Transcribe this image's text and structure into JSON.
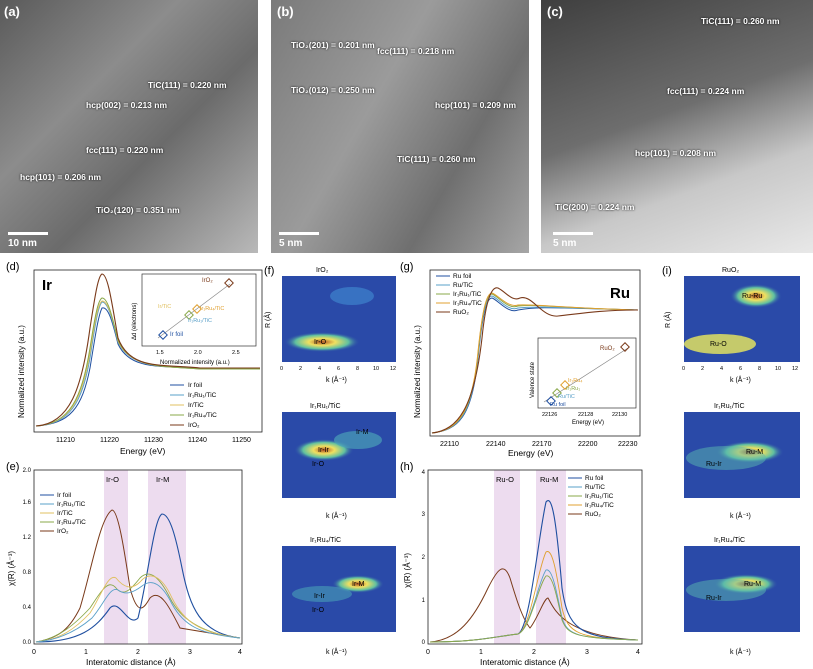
{
  "panel_a": {
    "label": "(a)",
    "scale": "10 nm",
    "annotations": [
      "TiC(111) = 0.220 nm",
      "hcp(002) = 0.213 nm",
      "fcc(111) = 0.220 nm",
      "hcp(101) = 0.206 nm",
      "TiO₂(120) = 0.351 nm"
    ]
  },
  "panel_b": {
    "label": "(b)",
    "scale": "5 nm",
    "annotations": [
      "TiO₂(201) = 0.201 nm",
      "fcc(111) = 0.218 nm",
      "TiO₂(012) = 0.250 nm",
      "hcp(101) = 0.209 nm",
      "TiC(111) = 0.260 nm"
    ]
  },
  "panel_c": {
    "label": "(c)",
    "scale": "5 nm",
    "annotations": [
      "TiC(111) = 0.260 nm",
      "fcc(111) = 0.224 nm",
      "hcp(101) = 0.208 nm",
      "TiC(200) = 0.224 nm"
    ]
  },
  "panel_d": {
    "label": "(d)",
    "element": "Ir",
    "xlabel": "Energy (eV)",
    "ylabel": "Normalized intensity (a.u.)",
    "xticks": [
      "11210",
      "11220",
      "11230",
      "11240",
      "11250"
    ],
    "legend": [
      "Ir foil",
      "Ir₁Ru₁/TiC",
      "Ir/TiC",
      "Ir₁Ru₄/TiC",
      "IrO₂"
    ],
    "colors": [
      "#1f4fa0",
      "#5aa0c8",
      "#e0c060",
      "#8aa84a",
      "#7a3a1a"
    ],
    "inset": {
      "xlabel": "Normalized intensity (a.u.)",
      "ylabel": "Δd (electrons)",
      "xticks": [
        "1.5",
        "2.0",
        "2.5"
      ],
      "yticks": [
        "2",
        "3",
        "4",
        "5"
      ],
      "labels": [
        "IrO₂",
        "Ir/TiC",
        "Ir₁Ru₄/TiC",
        "Ir₁Ru₁/TiC",
        "Ir foil"
      ]
    }
  },
  "panel_e": {
    "label": "(e)",
    "xlabel": "Interatomic distance (Å)",
    "ylabel": "χ(R) (Å⁻³)",
    "xticks": [
      "0",
      "1",
      "2",
      "3",
      "4"
    ],
    "yticks": [
      "0.0",
      "0.2",
      "0.4",
      "0.6",
      "0.8",
      "1.0",
      "1.2",
      "1.4",
      "1.6",
      "1.8",
      "2.0"
    ],
    "bands": [
      "Ir-O",
      "Ir-M"
    ],
    "legend": [
      "Ir foil",
      "Ir₁Ru₁/TiC",
      "Ir/TiC",
      "Ir₁Ru₄/TiC",
      "IrO₂"
    ]
  },
  "panel_f": {
    "label": "(f)",
    "maps": [
      {
        "title": "IrO₂",
        "labels": [
          "Ir-O"
        ]
      },
      {
        "title": "Ir₁Ru₁/TiC",
        "labels": [
          "Ir-M",
          "Ir-Ir",
          "Ir-O"
        ]
      },
      {
        "title": "Ir₁Ru₄/TiC",
        "labels": [
          "Ir-M",
          "Ir-Ir",
          "Ir-O"
        ]
      }
    ],
    "xlabel": "k (Å⁻¹)",
    "ylabel": "R (Å)",
    "xticks": [
      "0",
      "2",
      "4",
      "6",
      "8",
      "10",
      "12"
    ]
  },
  "panel_g": {
    "label": "(g)",
    "element": "Ru",
    "xlabel": "Energy (eV)",
    "ylabel": "Normalized intensity (a.u.)",
    "xticks": [
      "22110",
      "22140",
      "22170",
      "22200",
      "22230"
    ],
    "legend": [
      "Ru foil",
      "Ru/TiC",
      "Ir₁Ru₁/TiC",
      "Ir₁Ru₄/TiC",
      "RuO₂"
    ],
    "colors": [
      "#1f4fa0",
      "#5aa0c8",
      "#8aa84a",
      "#e0a030",
      "#7a3a1a"
    ],
    "inset": {
      "xlabel": "Energy (eV)",
      "ylabel": "Valence state",
      "xticks": [
        "22126",
        "22128",
        "22130"
      ],
      "yticks": [
        "0",
        "1",
        "2",
        "3",
        "4"
      ],
      "labels": [
        "RuO₂",
        "Ir₁Ru₄",
        "Ir₁Ru₁",
        "Ru/TiC",
        "Ru foil"
      ]
    }
  },
  "panel_h": {
    "label": "(h)",
    "xlabel": "Interatomic distance (Å)",
    "ylabel": "χ(R) (Å⁻³)",
    "xticks": [
      "0",
      "1",
      "2",
      "3",
      "4"
    ],
    "yticks": [
      "0",
      "0.5",
      "1",
      "1.5",
      "2",
      "2.5",
      "3",
      "3.5",
      "4"
    ],
    "bands": [
      "Ru-O",
      "Ru-M"
    ],
    "legend": [
      "Ru foil",
      "Ru/TiC",
      "Ir₁Ru₁/TiC",
      "Ir₁Ru₄/TiC",
      "RuO₂"
    ]
  },
  "panel_i": {
    "label": "(i)",
    "maps": [
      {
        "title": "RuO₂",
        "labels": [
          "Ru-Ru",
          "Ru-O"
        ]
      },
      {
        "title": "Ir₁Ru₁/TiC",
        "labels": [
          "Ru-M",
          "Ru-Ir"
        ]
      },
      {
        "title": "Ir₁Ru₄/TiC",
        "labels": [
          "Ru-M",
          "Ru-Ir"
        ]
      }
    ],
    "xlabel": "k (Å⁻¹)",
    "ylabel": "R (Å)",
    "xticks": [
      "0",
      "2",
      "4",
      "6",
      "8",
      "10",
      "12"
    ]
  }
}
